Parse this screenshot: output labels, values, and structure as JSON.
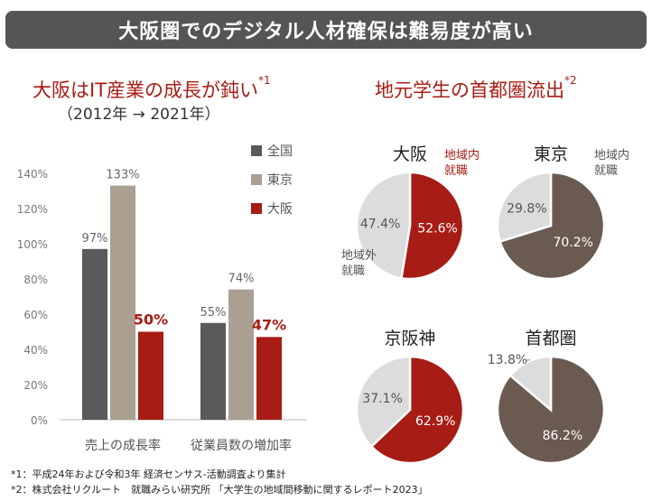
{
  "banner": "大阪圏でのデジタル人材確保は難易度が高い",
  "left": {
    "title": "大阪はIT産業の成長が鈍い",
    "title_note": "*1",
    "subtitle": "（2012年 → 2021年）"
  },
  "right": {
    "title": "地元学生の首都圏流出",
    "title_note": "*2"
  },
  "colors": {
    "national": "#5a5a5a",
    "tokyo": "#ab9f91",
    "osaka": "#a71c14",
    "local_brown": "#6a5a4f",
    "outside_gray": "#dcdcdc",
    "banner_bg": "#555555"
  },
  "chart_data": [
    {
      "type": "bar",
      "categories": [
        "売上の成長率",
        "従業員数の増加率"
      ],
      "series": [
        {
          "name": "全国",
          "values": [
            97,
            55
          ],
          "labels": [
            "97%",
            "55%"
          ]
        },
        {
          "name": "東京",
          "values": [
            133,
            74
          ],
          "labels": [
            "133%",
            "74%"
          ]
        },
        {
          "name": "大阪",
          "values": [
            50,
            47
          ],
          "labels": [
            "50%",
            "47%"
          ]
        }
      ],
      "yticks": [
        "0%",
        "20%",
        "40%",
        "60%",
        "80%",
        "100%",
        "120%",
        "140%"
      ],
      "ylim": [
        0,
        140
      ],
      "legend": "top-right"
    },
    {
      "type": "pie",
      "title": "大阪",
      "slices": [
        {
          "label": "地域内就職",
          "value": 52.6,
          "text": "52.6%"
        },
        {
          "label": "地域外就職",
          "value": 47.4,
          "text": "47.4%"
        }
      ]
    },
    {
      "type": "pie",
      "title": "東京",
      "slices": [
        {
          "label": "地域内就職",
          "value": 70.2,
          "text": "70.2%"
        },
        {
          "label": "地域外就職",
          "value": 29.8,
          "text": "29.8%"
        }
      ]
    },
    {
      "type": "pie",
      "title": "京阪神",
      "slices": [
        {
          "label": "地域内就職",
          "value": 62.9,
          "text": "62.9%"
        },
        {
          "label": "地域外就職",
          "value": 37.1,
          "text": "37.1%"
        }
      ]
    },
    {
      "type": "pie",
      "title": "首都圏",
      "slices": [
        {
          "label": "地域内就職",
          "value": 86.2,
          "text": "86.2%"
        },
        {
          "label": "地域外就職",
          "value": 13.8,
          "text": "13.8%"
        }
      ]
    }
  ],
  "pie_annotations": {
    "osaka_inside": "地域内\n就職",
    "osaka_outside": "地域外\n就職",
    "tokyo_inside": "地域内\n就職"
  },
  "footnotes": [
    "*1：平成24年および令和3年 経済センサス-活動調査より集計",
    "*2：株式会社リクルート　就職みらい研究所 「大学生の地域間移動に関するレポート2023」"
  ]
}
